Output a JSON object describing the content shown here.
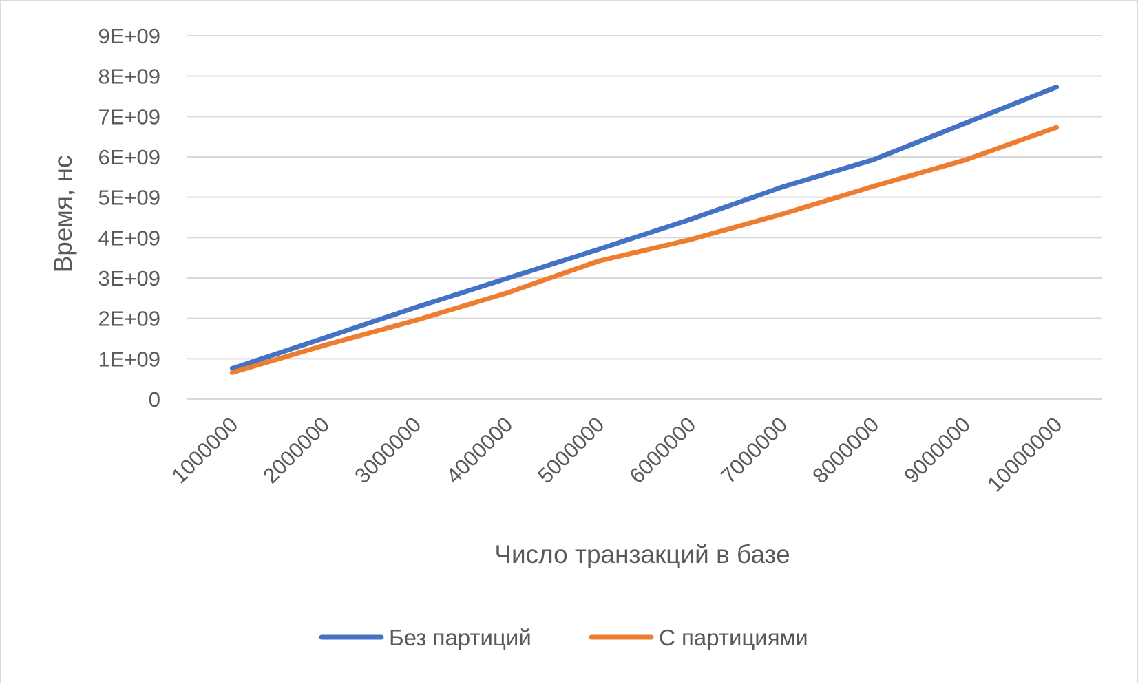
{
  "chart_data": {
    "type": "line",
    "title": "",
    "xlabel": "Число транзакций в базе",
    "ylabel": "Время, нс",
    "categories": [
      "1000000",
      "2000000",
      "3000000",
      "4000000",
      "5000000",
      "6000000",
      "7000000",
      "8000000",
      "9000000",
      "10000000"
    ],
    "y_ticks": [
      "0",
      "1E+09",
      "2E+09",
      "3E+09",
      "4E+09",
      "5E+09",
      "6E+09",
      "7E+09",
      "8E+09",
      "9E+09"
    ],
    "ylim": [
      0,
      9000000000
    ],
    "grid": true,
    "legend_position": "bottom",
    "series": [
      {
        "name": "Без партиций",
        "color": "#4472C4",
        "values": [
          760000000,
          1510000000,
          2270000000,
          2990000000,
          3710000000,
          4450000000,
          5250000000,
          5930000000,
          6830000000,
          7730000000
        ]
      },
      {
        "name": "С партициями",
        "color": "#ED7D31",
        "values": [
          660000000,
          1330000000,
          1950000000,
          2630000000,
          3420000000,
          3950000000,
          4580000000,
          5270000000,
          5920000000,
          6730000000
        ]
      }
    ]
  }
}
